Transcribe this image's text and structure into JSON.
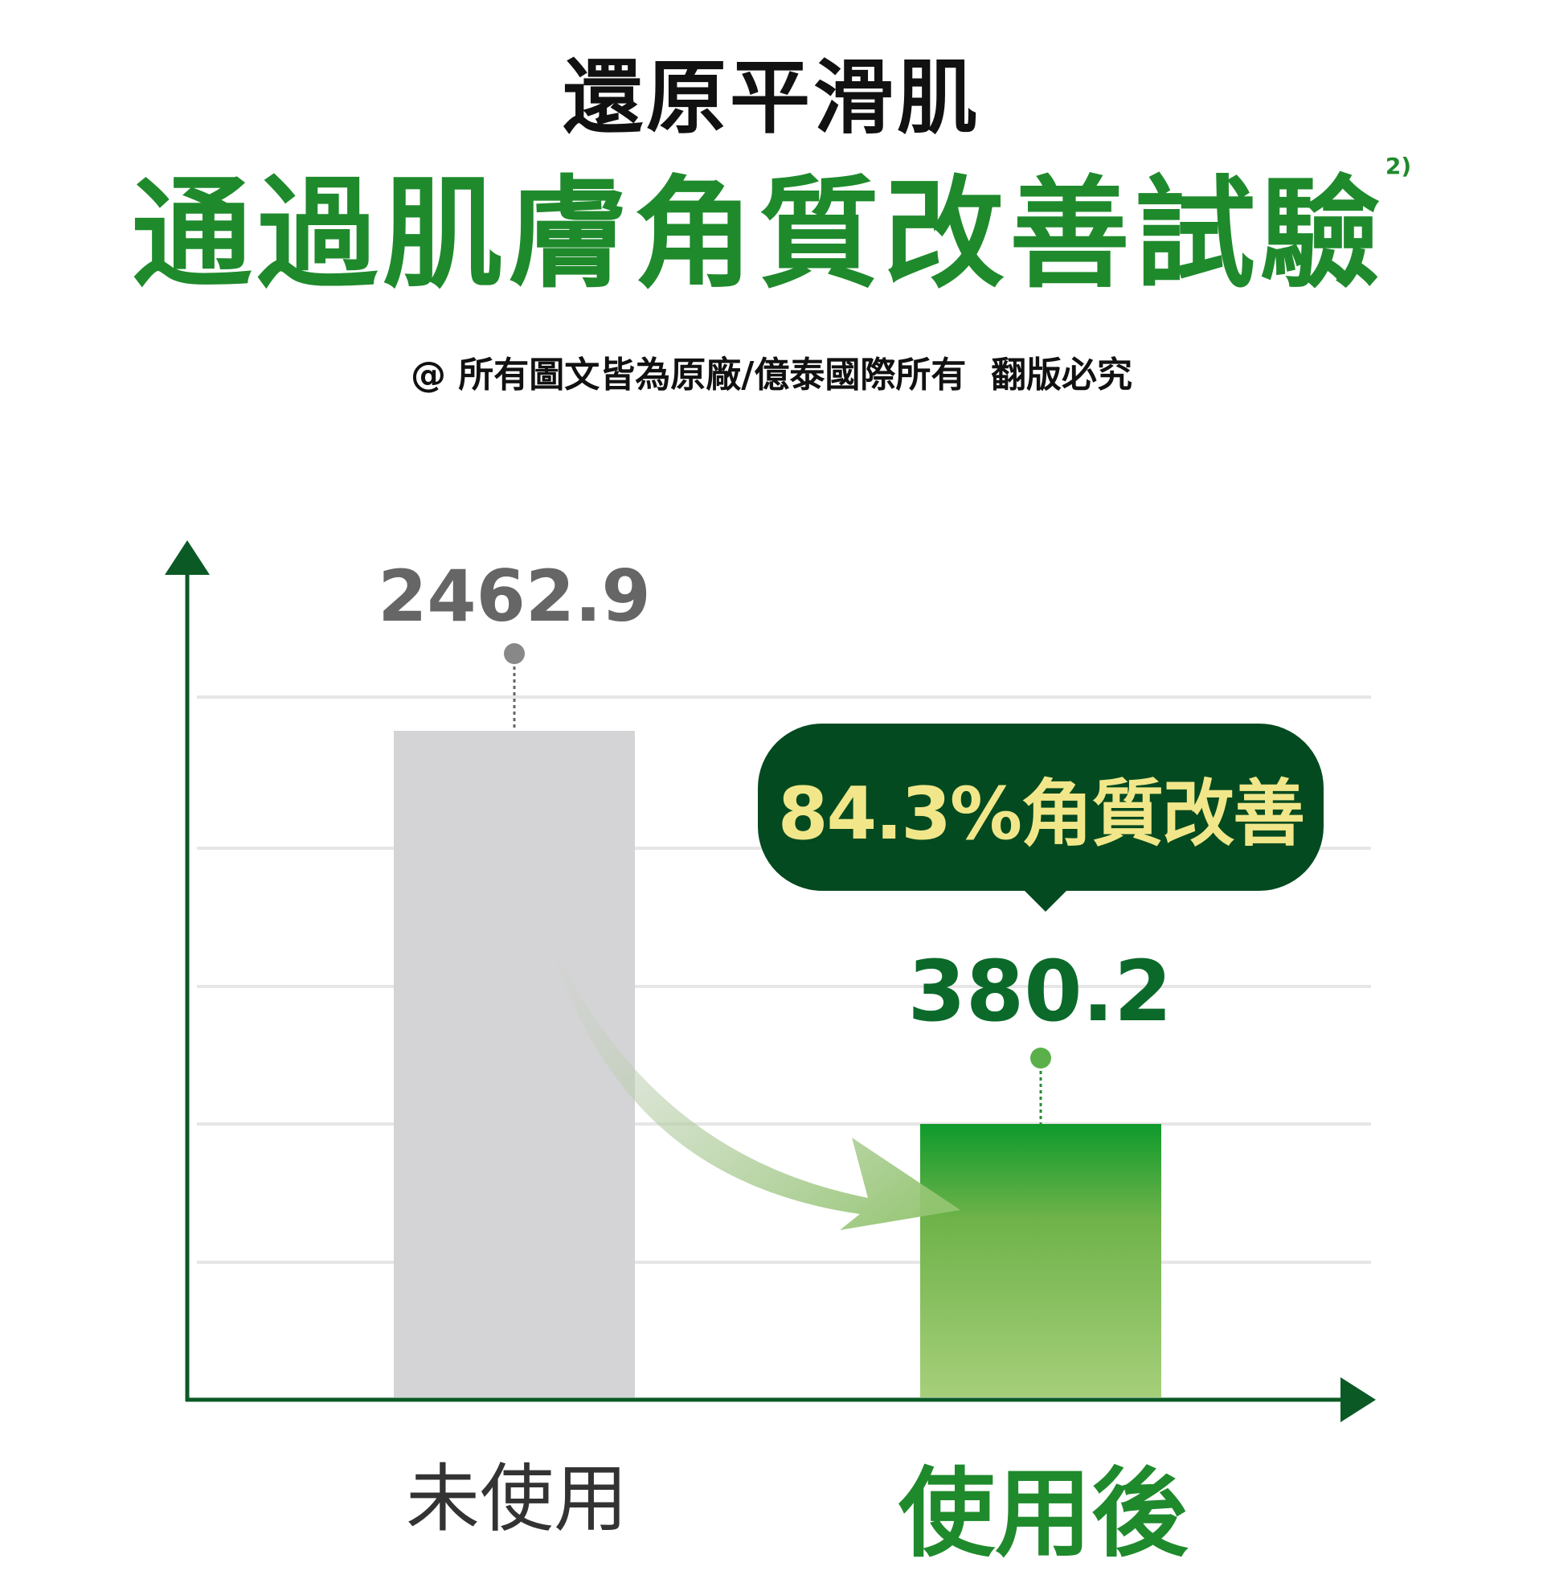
{
  "header": {
    "title": "還原平滑肌",
    "subtitle": "通過肌膚角質改善試驗",
    "subtitle_note": "2)",
    "copyright": "@ 所有圖文皆為原廠/億泰國際所有  翻版必究"
  },
  "chart_data": {
    "type": "bar",
    "categories": [
      "未使用",
      "使用後"
    ],
    "values": [
      2462.9,
      380.2
    ],
    "value_labels": [
      "2462.9",
      "380.2"
    ],
    "annotation": "84.3%角質改善",
    "title": "",
    "xlabel": "",
    "ylabel": "",
    "grid": true,
    "colors": {
      "before": "#d4d4d6",
      "after_top": "#0f9a2c",
      "after_bottom": "#a6cf7a",
      "axis": "#0b5a26",
      "bubble": "#034a20",
      "bubble_text": "#f1e78a",
      "arrow": "#8fc46a"
    }
  }
}
